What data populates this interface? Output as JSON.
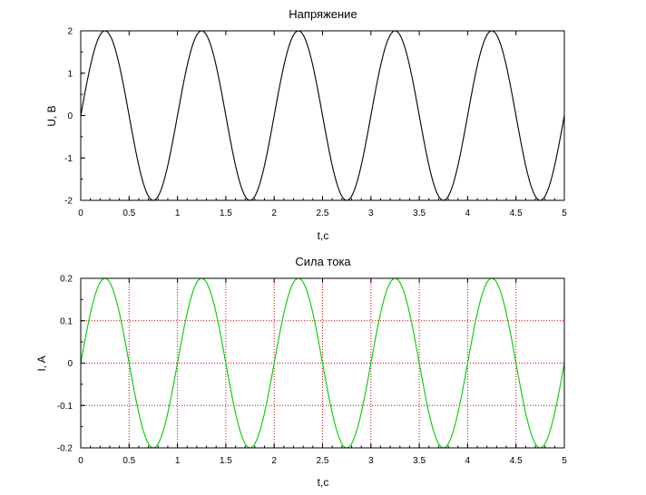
{
  "chart_data": [
    {
      "type": "line",
      "title": "Напряжение",
      "xlabel": "",
      "ylabel": "U, B",
      "xlim": [
        0,
        5
      ],
      "ylim": [
        -2,
        2
      ],
      "xticks": [
        "0",
        "0.5",
        "1",
        "1.5",
        "2",
        "2.5",
        "3",
        "3.5",
        "4",
        "4.5",
        "5"
      ],
      "yticks": [
        "-2",
        "-1",
        "0",
        "1",
        "2"
      ],
      "grid": false,
      "series": [
        {
          "color": "#000000",
          "function": "2*sin(2*pi*t)",
          "x": [
            0,
            0.25,
            0.5,
            0.75,
            1,
            1.25,
            1.5,
            1.75,
            2,
            2.25,
            2.5,
            2.75,
            3,
            3.25,
            3.5,
            3.75,
            4,
            4.25,
            4.5,
            4.75,
            5
          ],
          "values": [
            0,
            2,
            0,
            -2,
            0,
            2,
            0,
            -2,
            0,
            2,
            0,
            -2,
            0,
            2,
            0,
            -2,
            0,
            2,
            0,
            -2,
            0
          ]
        }
      ]
    },
    {
      "type": "line",
      "title": "Сила тока",
      "xlabel": "t,c",
      "ylabel": "I, A",
      "xlim": [
        0,
        5
      ],
      "ylim": [
        -0.2,
        0.2
      ],
      "xticks": [
        "0",
        "0.5",
        "1",
        "1.5",
        "2",
        "2.5",
        "3",
        "3.5",
        "4",
        "4.5",
        "5"
      ],
      "yticks": [
        "-0.2",
        "-0.1",
        "0",
        "0.1",
        "0.2"
      ],
      "grid": true,
      "grid_color": "#cc0000",
      "series": [
        {
          "color": "#00cc00",
          "function": "0.2*sin(2*pi*t)",
          "x": [
            0,
            0.25,
            0.5,
            0.75,
            1,
            1.25,
            1.5,
            1.75,
            2,
            2.25,
            2.5,
            2.75,
            3,
            3.25,
            3.5,
            3.75,
            4,
            4.25,
            4.5,
            4.75,
            5
          ],
          "values": [
            0,
            0.2,
            0,
            -0.2,
            0,
            0.2,
            0,
            -0.2,
            0,
            0.2,
            0,
            -0.2,
            0,
            0.2,
            0,
            -0.2,
            0,
            0.2,
            0,
            -0.2,
            0
          ]
        }
      ]
    }
  ],
  "between_label": "t,c"
}
